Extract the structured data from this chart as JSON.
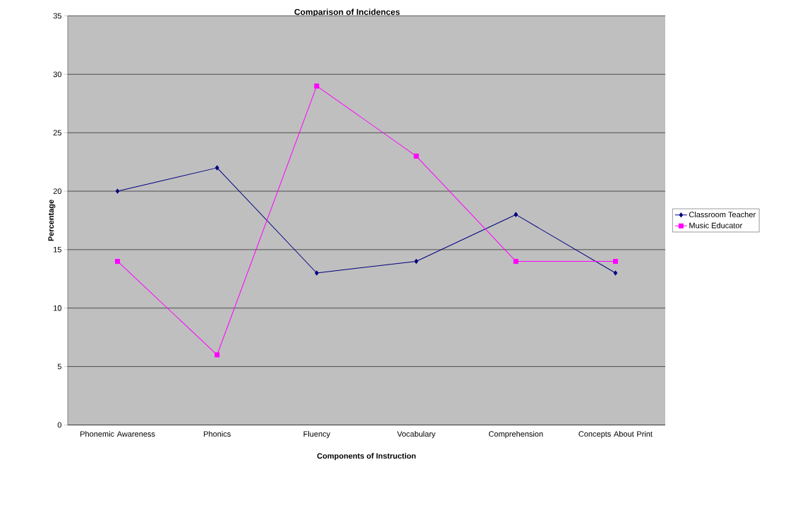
{
  "chart_data": {
    "type": "line",
    "title": "Comparison of Incidences",
    "xlabel": "Components of Instruction",
    "ylabel": "Percentage",
    "categories": [
      "Phonemic Awareness",
      "Phonics",
      "Fluency",
      "Vocabulary",
      "Comprehension",
      "Concepts About Print"
    ],
    "series": [
      {
        "name": "Classroom Teacher",
        "color": "#000080",
        "marker": "diamond",
        "values": [
          20,
          22,
          13,
          14,
          18,
          13
        ]
      },
      {
        "name": "Music Educator",
        "color": "#ff00ff",
        "marker": "square",
        "values": [
          14,
          6,
          29,
          23,
          14,
          14
        ]
      }
    ],
    "ylim": [
      0,
      35
    ],
    "yticks": [
      0,
      5,
      10,
      15,
      20,
      25,
      30,
      35
    ],
    "grid": "y",
    "legend": "right",
    "line_style": "solid"
  }
}
